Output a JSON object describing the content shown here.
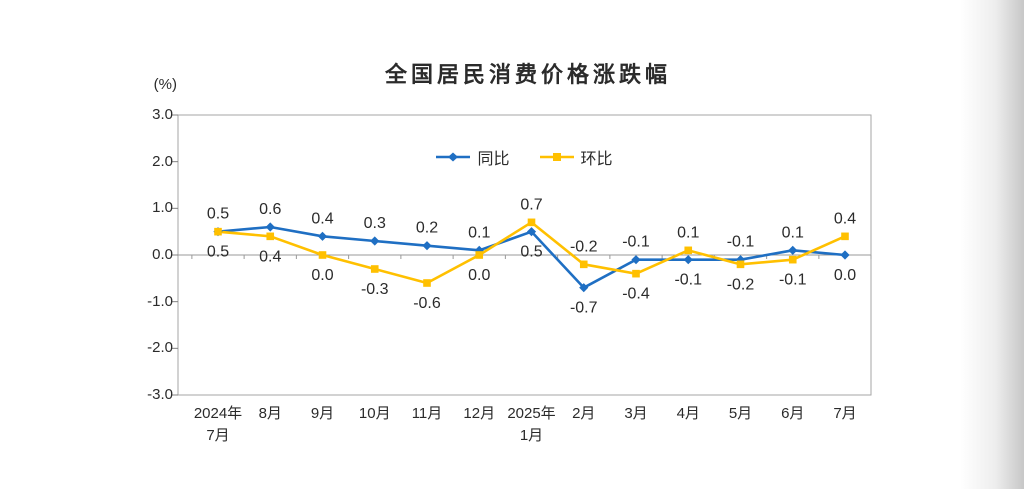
{
  "chart_data": {
    "type": "line",
    "title": "全国居民消费价格涨跌幅",
    "unit_label": "(%)",
    "categories": [
      "2024年\n7月",
      "8月",
      "9月",
      "10月",
      "11月",
      "12月",
      "2025年\n1月",
      "2月",
      "3月",
      "4月",
      "5月",
      "6月",
      "7月"
    ],
    "y_axis": {
      "min": -3.0,
      "max": 3.0,
      "step": 1.0,
      "tick_labels": [
        "3.0",
        "2.0",
        "1.0",
        "0.0",
        "-1.0",
        "-2.0",
        "-3.0"
      ]
    },
    "legend": {
      "position": "top-center"
    },
    "series": [
      {
        "name": "同比",
        "color": "#1F6FC3",
        "marker": "diamond",
        "values": [
          0.5,
          0.6,
          0.4,
          0.3,
          0.2,
          0.1,
          0.5,
          -0.7,
          -0.1,
          -0.1,
          -0.1,
          0.1,
          0.0
        ],
        "labels": [
          "0.5",
          "0.6",
          "0.4",
          "0.3",
          "0.2",
          "0.1",
          "0.5",
          "-0.7",
          "-0.1",
          "-0.1",
          "-0.1",
          "0.1",
          "0.0"
        ]
      },
      {
        "name": "环比",
        "color": "#FFC000",
        "marker": "square",
        "values": [
          0.5,
          0.4,
          0.0,
          -0.3,
          -0.6,
          0.0,
          0.7,
          -0.2,
          -0.4,
          0.1,
          -0.2,
          -0.1,
          0.4
        ],
        "labels": [
          "0.5",
          "0.4",
          "0.0",
          "-0.3",
          "-0.6",
          "0.0",
          "0.7",
          "-0.2",
          "-0.4",
          "0.1",
          "-0.2",
          "-0.1",
          "0.4"
        ]
      }
    ],
    "grid": false,
    "colors": {
      "axis_border": "#A6A6A6",
      "zero_line": "#999999",
      "tick": "#808080",
      "text": "#2b2b2b"
    }
  }
}
